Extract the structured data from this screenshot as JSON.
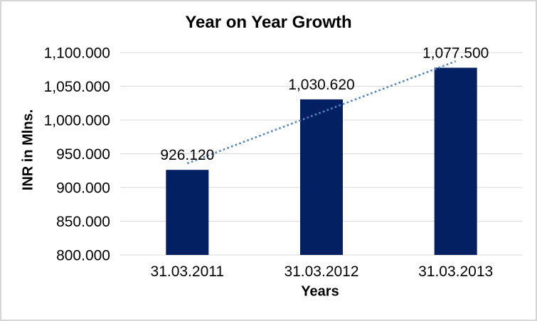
{
  "chart_data": {
    "type": "bar",
    "title": "Year on Year Growth",
    "xlabel": "Years",
    "ylabel": "INR in Mlns.",
    "categories": [
      "31.03.2011",
      "31.03.2012",
      "31.03.2013"
    ],
    "series": [
      {
        "name": "INR in Mlns.",
        "values": [
          926.12,
          1030.62,
          1077.5
        ]
      }
    ],
    "data_labels": [
      "926.120",
      "1,030.620",
      "1,077.500"
    ],
    "ylim": [
      800,
      1100
    ],
    "y_ticks": [
      {
        "value": 800,
        "label": "800.000"
      },
      {
        "value": 850,
        "label": "850.000"
      },
      {
        "value": 900,
        "label": "900.000"
      },
      {
        "value": 950,
        "label": "950.000"
      },
      {
        "value": 1000,
        "label": "1,000.000"
      },
      {
        "value": 1050,
        "label": "1,050.000"
      },
      {
        "value": 1100,
        "label": "1,100.000"
      }
    ],
    "grid": true,
    "legend": "none",
    "trendline": {
      "type": "linear",
      "style": "dotted"
    },
    "colors": {
      "bar": "#032062",
      "trendline": "#4f86c5",
      "gridline": "#d9d9d9",
      "axis_line": "#d9d9d9",
      "text": "#000000",
      "border": "#d6d6d6",
      "background": "#ffffff"
    }
  }
}
